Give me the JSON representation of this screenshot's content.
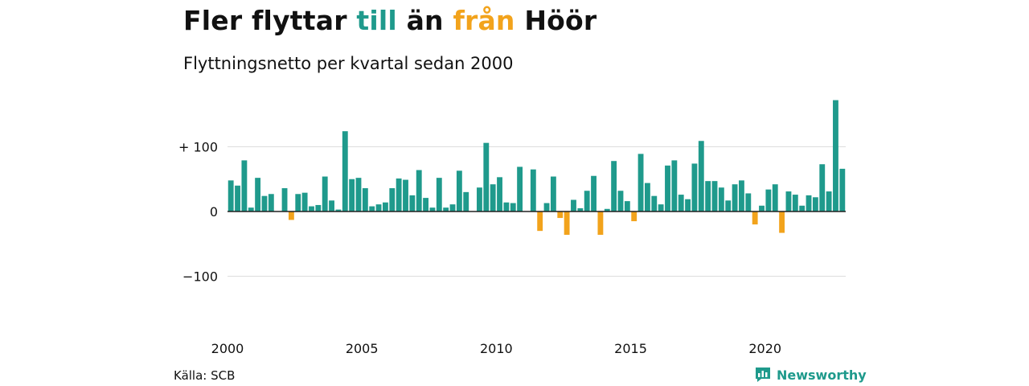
{
  "header": {
    "title_part1": "Fler flyttar ",
    "title_in": "till",
    "title_part2": " än ",
    "title_out": "från",
    "title_part3": " Höör",
    "subtitle": "Flyttningsnetto per kvartal sedan 2000"
  },
  "footer": {
    "source": "Källa: SCB",
    "brand": "Newsworthy"
  },
  "colors": {
    "positive": "#1f9a8c",
    "negative": "#f2a31c",
    "grid": "#dddddd",
    "baseline": "#222222"
  },
  "chart_data": {
    "type": "bar",
    "title": "Fler flyttar till än från Höör",
    "subtitle": "Flyttningsnetto per kvartal sedan 2000",
    "xlabel": "",
    "ylabel": "",
    "ylim": [
      -150,
      180
    ],
    "y_ticks": [
      {
        "value": 100,
        "label": "+ 100"
      },
      {
        "value": 0,
        "label": "0"
      },
      {
        "value": -100,
        "label": "−100"
      }
    ],
    "x_ticks": [
      {
        "value": 2000,
        "label": "2000"
      },
      {
        "value": 2005,
        "label": "2005"
      },
      {
        "value": 2010,
        "label": "2010"
      },
      {
        "value": 2015,
        "label": "2015"
      },
      {
        "value": 2020,
        "label": "2020"
      }
    ],
    "start_year": 2000,
    "grid": true,
    "values": [
      48,
      40,
      79,
      6,
      52,
      24,
      27,
      0,
      36,
      -13,
      27,
      29,
      8,
      10,
      54,
      17,
      3,
      124,
      50,
      52,
      36,
      8,
      11,
      14,
      36,
      51,
      49,
      25,
      64,
      21,
      6,
      52,
      6,
      11,
      63,
      30,
      0,
      37,
      106,
      42,
      53,
      14,
      13,
      69,
      0,
      65,
      -30,
      13,
      54,
      -10,
      -36,
      18,
      5,
      32,
      55,
      -36,
      4,
      78,
      32,
      16,
      -15,
      89,
      44,
      24,
      11,
      71,
      79,
      26,
      19,
      74,
      109,
      47,
      47,
      37,
      17,
      42,
      48,
      28,
      -20,
      9,
      34,
      42,
      -33,
      31,
      26,
      9,
      25,
      22,
      73,
      31,
      172,
      66
    ]
  }
}
